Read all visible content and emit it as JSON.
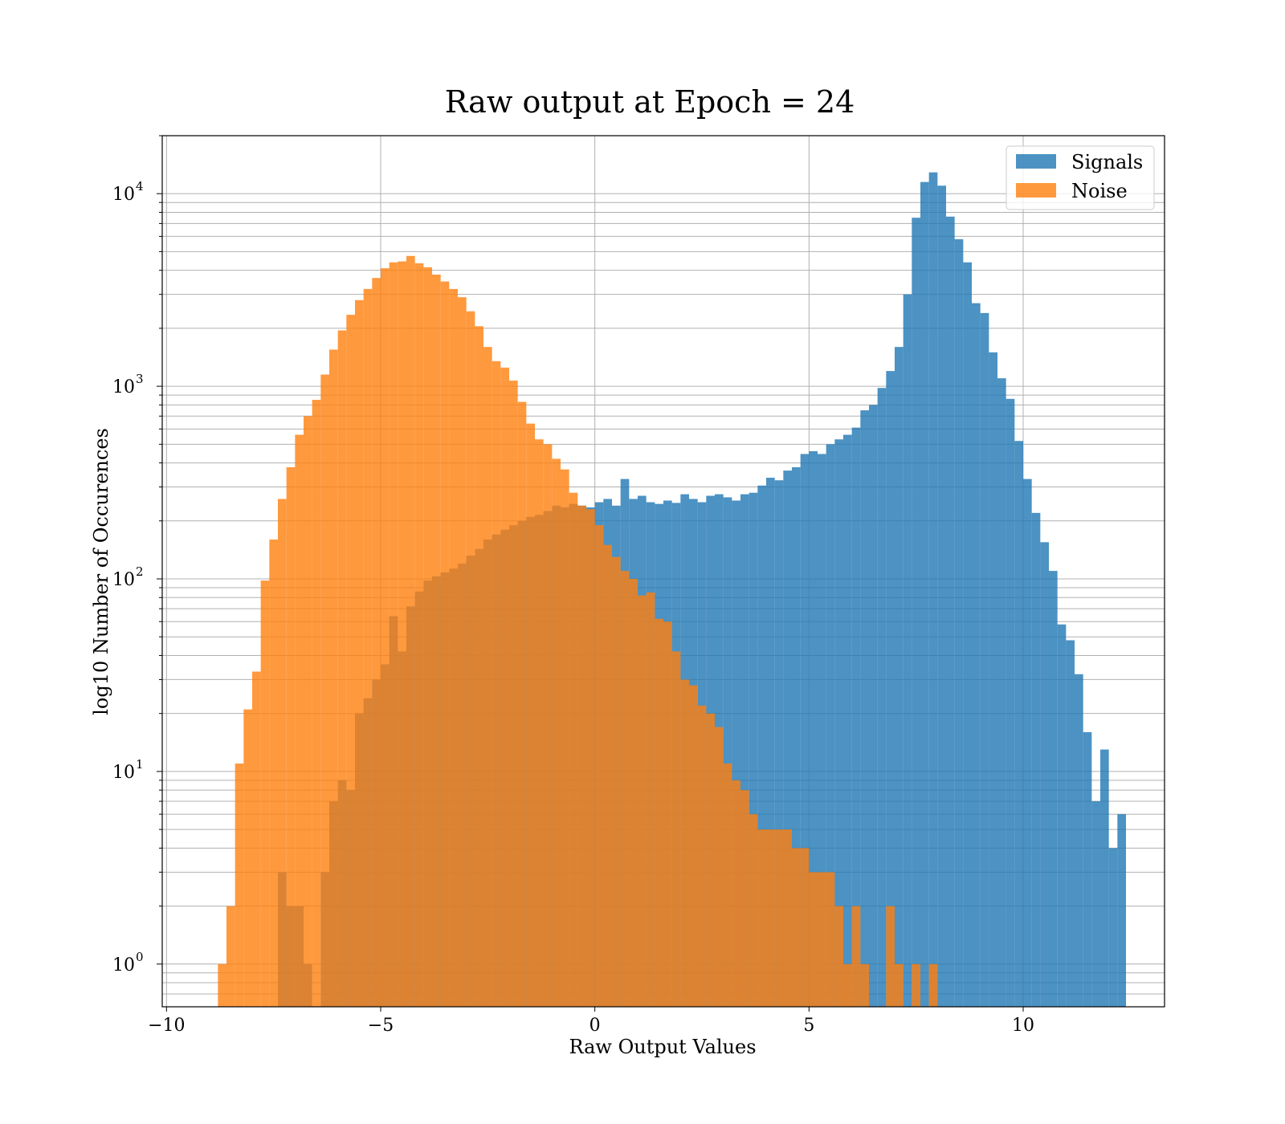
{
  "chart_data": {
    "type": "bar",
    "subtype": "histogram",
    "title": "Raw output at Epoch = 24",
    "xlabel": "Raw Output Values",
    "ylabel": "log10 Number of Occurences",
    "xlim": [
      -10.1,
      13.3
    ],
    "ylim": [
      0.6,
      20000
    ],
    "yscale": "log",
    "grid": true,
    "legend_position": "top-right",
    "x_ticks": [
      {
        "value": -10,
        "label": "−10"
      },
      {
        "value": -5,
        "label": "−5"
      },
      {
        "value": 0,
        "label": "0"
      },
      {
        "value": 5,
        "label": "5"
      },
      {
        "value": 10,
        "label": "10"
      }
    ],
    "y_ticks": [
      {
        "value": 1,
        "base": "10",
        "exp": "0"
      },
      {
        "value": 10,
        "base": "10",
        "exp": "1"
      },
      {
        "value": 100,
        "base": "10",
        "exp": "2"
      },
      {
        "value": 1000,
        "base": "10",
        "exp": "3"
      },
      {
        "value": 10000,
        "base": "10",
        "exp": "4"
      }
    ],
    "series": [
      {
        "name": "Signals",
        "color": "#1f77b4",
        "opacity": 0.8,
        "bins": [
          [
            -7.4,
            -7.2,
            3
          ],
          [
            -7.2,
            -7.0,
            2
          ],
          [
            -7.0,
            -6.8,
            2
          ],
          [
            -6.8,
            -6.6,
            1
          ],
          [
            -6.4,
            -6.2,
            3
          ],
          [
            -6.2,
            -6.0,
            7
          ],
          [
            -6.0,
            -5.8,
            9
          ],
          [
            -5.8,
            -5.6,
            8
          ],
          [
            -5.6,
            -5.4,
            20
          ],
          [
            -5.4,
            -5.2,
            24
          ],
          [
            -5.2,
            -5.0,
            30
          ],
          [
            -5.0,
            -4.8,
            36
          ],
          [
            -4.8,
            -4.6,
            64
          ],
          [
            -4.6,
            -4.4,
            42
          ],
          [
            -4.4,
            -4.2,
            72
          ],
          [
            -4.2,
            -4.0,
            86
          ],
          [
            -4.0,
            -3.8,
            98
          ],
          [
            -3.8,
            -3.6,
            103
          ],
          [
            -3.6,
            -3.4,
            108
          ],
          [
            -3.4,
            -3.2,
            113
          ],
          [
            -3.2,
            -3.0,
            120
          ],
          [
            -3.0,
            -2.8,
            132
          ],
          [
            -2.8,
            -2.6,
            143
          ],
          [
            -2.6,
            -2.4,
            160
          ],
          [
            -2.4,
            -2.2,
            170
          ],
          [
            -2.2,
            -2.0,
            180
          ],
          [
            -2.0,
            -1.8,
            190
          ],
          [
            -1.8,
            -1.6,
            200
          ],
          [
            -1.6,
            -1.4,
            210
          ],
          [
            -1.4,
            -1.2,
            215
          ],
          [
            -1.2,
            -1.0,
            225
          ],
          [
            -1.0,
            -0.8,
            240
          ],
          [
            -0.8,
            -0.6,
            235
          ],
          [
            -0.6,
            -0.4,
            245
          ],
          [
            -0.4,
            -0.2,
            240
          ],
          [
            -0.2,
            0.0,
            235
          ],
          [
            0.0,
            0.2,
            250
          ],
          [
            0.2,
            0.4,
            260
          ],
          [
            0.4,
            0.6,
            240
          ],
          [
            0.6,
            0.8,
            330
          ],
          [
            0.8,
            1.0,
            260
          ],
          [
            1.0,
            1.2,
            270
          ],
          [
            1.2,
            1.4,
            250
          ],
          [
            1.4,
            1.6,
            245
          ],
          [
            1.6,
            1.8,
            255
          ],
          [
            1.8,
            2.0,
            248
          ],
          [
            2.0,
            2.2,
            275
          ],
          [
            2.2,
            2.4,
            260
          ],
          [
            2.4,
            2.6,
            250
          ],
          [
            2.6,
            2.8,
            270
          ],
          [
            2.8,
            3.0,
            275
          ],
          [
            3.0,
            3.2,
            265
          ],
          [
            3.2,
            3.4,
            255
          ],
          [
            3.4,
            3.6,
            275
          ],
          [
            3.6,
            3.8,
            280
          ],
          [
            3.8,
            4.0,
            305
          ],
          [
            4.0,
            4.2,
            335
          ],
          [
            4.2,
            4.4,
            325
          ],
          [
            4.4,
            4.6,
            365
          ],
          [
            4.6,
            4.8,
            380
          ],
          [
            4.8,
            5.0,
            445
          ],
          [
            5.0,
            5.2,
            460
          ],
          [
            5.2,
            5.4,
            445
          ],
          [
            5.4,
            5.6,
            500
          ],
          [
            5.6,
            5.8,
            530
          ],
          [
            5.8,
            6.0,
            560
          ],
          [
            6.0,
            6.2,
            610
          ],
          [
            6.2,
            6.4,
            750
          ],
          [
            6.4,
            6.6,
            800
          ],
          [
            6.6,
            6.8,
            980
          ],
          [
            6.8,
            7.0,
            1200
          ],
          [
            7.0,
            7.2,
            1600
          ],
          [
            7.2,
            7.4,
            3000
          ],
          [
            7.4,
            7.6,
            7500
          ],
          [
            7.6,
            7.8,
            11500
          ],
          [
            7.8,
            8.0,
            12900
          ],
          [
            8.0,
            8.2,
            11000
          ],
          [
            8.2,
            8.4,
            7600
          ],
          [
            8.4,
            8.6,
            5800
          ],
          [
            8.6,
            8.8,
            4400
          ],
          [
            8.8,
            9.0,
            2700
          ],
          [
            9.0,
            9.2,
            2400
          ],
          [
            9.2,
            9.4,
            1500
          ],
          [
            9.4,
            9.6,
            1100
          ],
          [
            9.6,
            9.8,
            860
          ],
          [
            9.8,
            10.0,
            520
          ],
          [
            10.0,
            10.2,
            330
          ],
          [
            10.2,
            10.4,
            220
          ],
          [
            10.4,
            10.6,
            155
          ],
          [
            10.6,
            10.8,
            110
          ],
          [
            10.8,
            11.0,
            58
          ],
          [
            11.0,
            11.2,
            48
          ],
          [
            11.2,
            11.4,
            32
          ],
          [
            11.4,
            11.6,
            16
          ],
          [
            11.6,
            11.8,
            7
          ],
          [
            11.8,
            12.0,
            13
          ],
          [
            12.0,
            12.2,
            4
          ],
          [
            12.2,
            12.4,
            6
          ]
        ]
      },
      {
        "name": "Noise",
        "color": "#ff7f0e",
        "opacity": 0.8,
        "bins": [
          [
            -8.8,
            -8.6,
            1
          ],
          [
            -8.6,
            -8.4,
            2
          ],
          [
            -8.4,
            -8.2,
            11
          ],
          [
            -8.2,
            -8.0,
            21
          ],
          [
            -8.0,
            -7.8,
            33
          ],
          [
            -7.8,
            -7.6,
            98
          ],
          [
            -7.6,
            -7.4,
            160
          ],
          [
            -7.4,
            -7.2,
            260
          ],
          [
            -7.2,
            -7.0,
            380
          ],
          [
            -7.0,
            -6.8,
            560
          ],
          [
            -6.8,
            -6.6,
            700
          ],
          [
            -6.6,
            -6.4,
            850
          ],
          [
            -6.4,
            -6.2,
            1150
          ],
          [
            -6.2,
            -6.0,
            1550
          ],
          [
            -6.0,
            -5.8,
            1950
          ],
          [
            -5.8,
            -5.6,
            2350
          ],
          [
            -5.6,
            -5.4,
            2800
          ],
          [
            -5.4,
            -5.2,
            3200
          ],
          [
            -5.2,
            -5.0,
            3650
          ],
          [
            -5.0,
            -4.8,
            4100
          ],
          [
            -4.8,
            -4.6,
            4400
          ],
          [
            -4.6,
            -4.4,
            4450
          ],
          [
            -4.4,
            -4.2,
            4750
          ],
          [
            -4.2,
            -4.0,
            4350
          ],
          [
            -4.0,
            -3.8,
            4150
          ],
          [
            -3.8,
            -3.6,
            3800
          ],
          [
            -3.6,
            -3.4,
            3500
          ],
          [
            -3.4,
            -3.2,
            3200
          ],
          [
            -3.2,
            -3.0,
            2900
          ],
          [
            -3.0,
            -2.8,
            2450
          ],
          [
            -2.8,
            -2.6,
            2050
          ],
          [
            -2.6,
            -2.4,
            1600
          ],
          [
            -2.4,
            -2.2,
            1350
          ],
          [
            -2.2,
            -2.0,
            1250
          ],
          [
            -2.0,
            -1.8,
            1070
          ],
          [
            -1.8,
            -1.6,
            830
          ],
          [
            -1.6,
            -1.4,
            640
          ],
          [
            -1.4,
            -1.2,
            530
          ],
          [
            -1.2,
            -1.0,
            500
          ],
          [
            -1.0,
            -0.8,
            420
          ],
          [
            -0.8,
            -0.6,
            370
          ],
          [
            -0.6,
            -0.4,
            280
          ],
          [
            -0.4,
            -0.2,
            240
          ],
          [
            -0.2,
            0.0,
            230
          ],
          [
            0.0,
            0.2,
            190
          ],
          [
            0.2,
            0.4,
            150
          ],
          [
            0.4,
            0.6,
            130
          ],
          [
            0.6,
            0.8,
            110
          ],
          [
            0.8,
            1.0,
            100
          ],
          [
            1.0,
            1.2,
            82
          ],
          [
            1.2,
            1.4,
            85
          ],
          [
            1.4,
            1.6,
            62
          ],
          [
            1.6,
            1.8,
            60
          ],
          [
            1.8,
            2.0,
            42
          ],
          [
            2.0,
            2.2,
            30
          ],
          [
            2.2,
            2.4,
            28
          ],
          [
            2.4,
            2.6,
            22
          ],
          [
            2.6,
            2.8,
            20
          ],
          [
            2.8,
            3.0,
            17
          ],
          [
            3.0,
            3.2,
            11
          ],
          [
            3.2,
            3.4,
            9
          ],
          [
            3.4,
            3.6,
            8
          ],
          [
            3.6,
            3.8,
            6
          ],
          [
            3.8,
            4.0,
            5
          ],
          [
            4.0,
            4.2,
            5
          ],
          [
            4.2,
            4.4,
            5
          ],
          [
            4.4,
            4.6,
            5
          ],
          [
            4.6,
            4.8,
            4
          ],
          [
            4.8,
            5.0,
            4
          ],
          [
            5.0,
            5.2,
            3
          ],
          [
            5.2,
            5.4,
            3
          ],
          [
            5.4,
            5.6,
            3
          ],
          [
            5.6,
            5.8,
            2
          ],
          [
            5.8,
            6.0,
            1
          ],
          [
            6.0,
            6.2,
            2
          ],
          [
            6.2,
            6.4,
            1
          ],
          [
            6.8,
            7.0,
            2
          ],
          [
            7.0,
            7.2,
            1
          ],
          [
            7.4,
            7.6,
            1
          ],
          [
            7.8,
            8.0,
            1
          ]
        ]
      }
    ]
  }
}
